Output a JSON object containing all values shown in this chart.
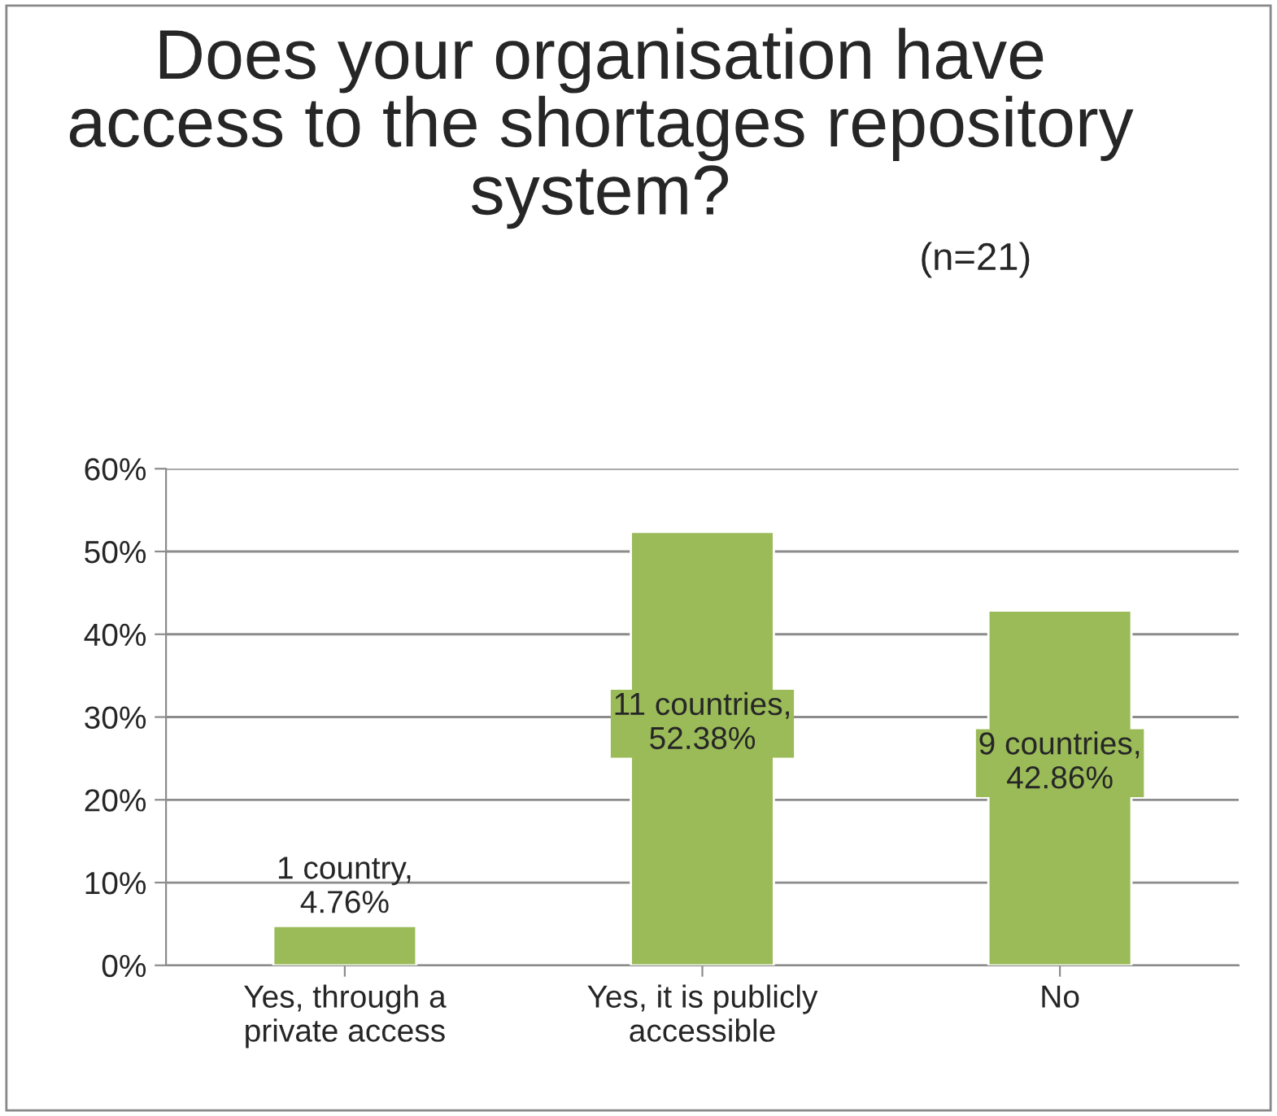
{
  "chart_data": {
    "type": "bar",
    "title": "Does your organisation have access to the shortages repository system?",
    "subtitle": "(n=21)",
    "categories": [
      "Yes, through a private access",
      "Yes, it is publicly accessible",
      "No"
    ],
    "values": [
      4.76,
      52.38,
      42.86
    ],
    "color": "#9bbb59",
    "value_labels": [
      "1 country, 4.76%",
      "11 countries, 52.38%",
      "9 countries, 42.86%"
    ],
    "ylim": [
      0,
      60
    ],
    "yticks": [
      {
        "value": 0,
        "label": "0%"
      },
      {
        "value": 10,
        "label": "10%"
      },
      {
        "value": 20,
        "label": "20%"
      },
      {
        "value": 30,
        "label": "30%"
      },
      {
        "value": 40,
        "label": "40%"
      },
      {
        "value": 50,
        "label": "50%"
      },
      {
        "value": 60,
        "label": "60%"
      }
    ],
    "grid": "y"
  }
}
